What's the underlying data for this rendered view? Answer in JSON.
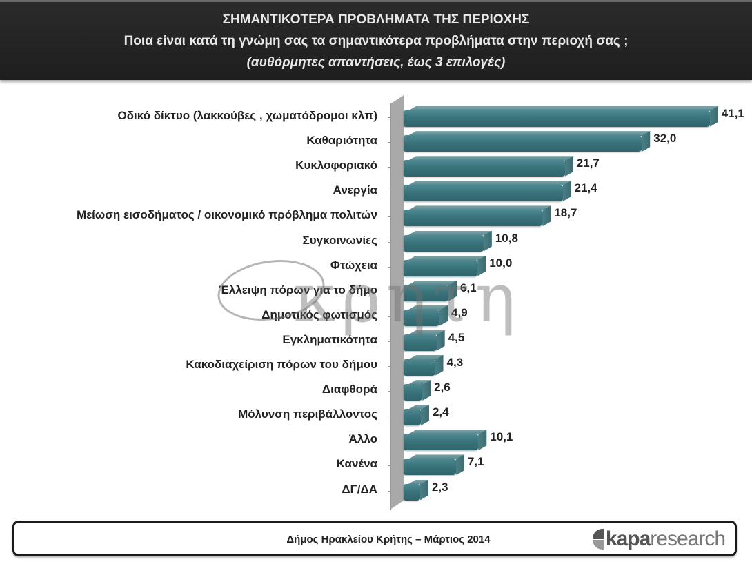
{
  "header": {
    "title": "ΣΗΜΑΝΤΙΚΟΤΕΡΑ ΠΡΟΒΛΗΜΑΤΑ ΤΗΣ ΠΕΡΙΟΧΗΣ",
    "question": "Ποια είναι κατά τη γνώμη σας τα σημαντικότερα προβλήματα στην περιοχή σας ;",
    "note": "(αυθόρμητες απαντήσεις, έως 3 επιλογές)"
  },
  "watermark": {
    "text": "κρητη"
  },
  "footer": {
    "caption": "Δήμος Ηρακλείου Κρήτης – Μάρτιος 2014",
    "logo_bold": "kapa",
    "logo_light": "research"
  },
  "colors": {
    "bar": "#3c757d",
    "header_bg": "#222222",
    "axis_wall": "#a9a9a9"
  },
  "chart_data": {
    "type": "bar",
    "orientation": "horizontal",
    "title": "ΣΗΜΑΝΤΙΚΟΤΕΡΑ ΠΡΟΒΛΗΜΑΤΑ ΤΗΣ ΠΕΡΙΟΧΗΣ",
    "subtitle": "Ποια είναι κατά τη γνώμη σας τα σημαντικότερα προβλήματα στην περιοχή σας ; (αυθόρμητες απαντήσεις, έως 3 επιλογές)",
    "xlabel": "",
    "ylabel": "",
    "grid": false,
    "legend": null,
    "categories": [
      "Οδικό δίκτυο (λακκούβες , χωματόδρομοι κλπ)",
      "Καθαριότητα",
      "Κυκλοφοριακό",
      "Ανεργία",
      "Μείωση εισοδήματος / οικονομικό πρόβλημα πολιτών",
      "Συγκοινωνίες",
      "Φτώχεια",
      "Έλλειψη πόρων για το δήμο",
      "Δημοτικός φωτισμός",
      "Εγκληματικότητα",
      "Κακοδιαχείριση πόρων του δήμου",
      "Διαφθορά",
      "Μόλυνση περιβάλλοντος",
      "Άλλο",
      "Κανένα",
      "ΔΓ/ΔΑ"
    ],
    "values": [
      41.1,
      32.0,
      21.7,
      21.4,
      18.7,
      10.8,
      10.0,
      6.1,
      4.9,
      4.5,
      4.3,
      2.6,
      2.4,
      10.1,
      7.1,
      2.3
    ],
    "value_labels": [
      "41,1",
      "32,0",
      "21,7",
      "21,4",
      "18,7",
      "10,8",
      "10,0",
      "6,1",
      "4,9",
      "4,5",
      "4,3",
      "2,6",
      "2,4",
      "10,1",
      "7,1",
      "2,3"
    ],
    "xlim": [
      0,
      45
    ]
  }
}
